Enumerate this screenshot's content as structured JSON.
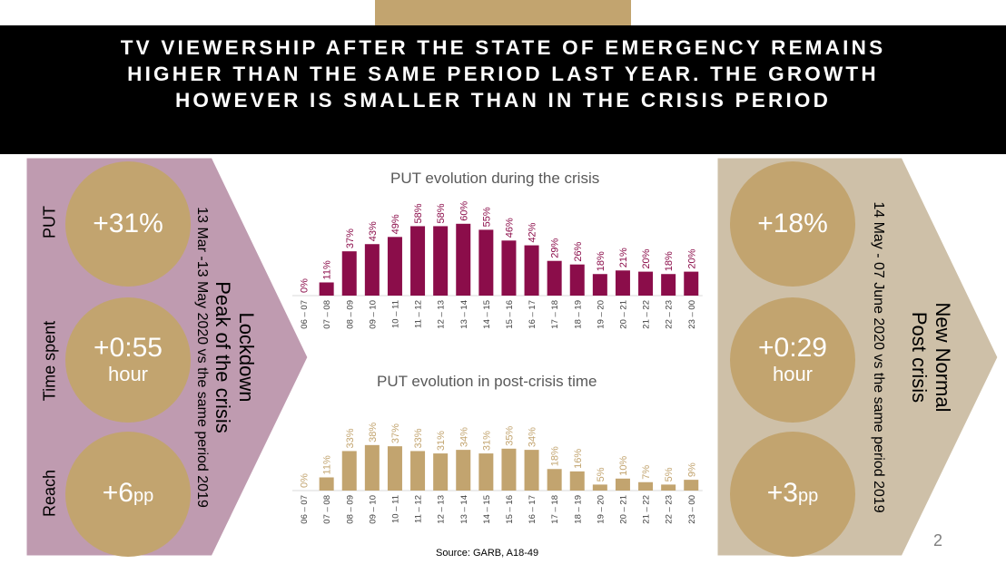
{
  "title": "TV viewership after the state of emergency remains higher than the same period last year. The growth however is smaller than in the crisis period",
  "left_panel": {
    "heading_line1": "Lockdown",
    "heading_line2": "Peak of the crisis",
    "period": "13 Mar -13 May 2020 vs the same period 2019",
    "metrics": [
      {
        "label": "PUT",
        "value": "+31%",
        "unit": ""
      },
      {
        "label": "Time spent",
        "value": "+0:55",
        "unit": "hour"
      },
      {
        "label": "Reach",
        "value": "+6",
        "unit": "pp"
      }
    ]
  },
  "right_panel": {
    "heading_line1": "New Normal",
    "heading_line2": "Post crisis",
    "period": "14 May - 07 June 2020 vs the same period 2019",
    "metrics": [
      {
        "value": "+18%",
        "unit": ""
      },
      {
        "value": "+0:29",
        "unit": "hour"
      },
      {
        "value": "+3",
        "unit": "pp"
      }
    ]
  },
  "chart_data": [
    {
      "type": "bar",
      "title": "PUT evolution during the crisis",
      "color": "#8b0d4a",
      "categories": [
        "06 – 07",
        "07 – 08",
        "08 – 09",
        "09 – 10",
        "10 – 11",
        "11 – 12",
        "12 – 13",
        "13 – 14",
        "14 – 15",
        "15 – 16",
        "16 – 17",
        "17 – 18",
        "18 – 19",
        "19 – 20",
        "20 – 21",
        "21 – 22",
        "22 – 23",
        "23 – 00"
      ],
      "values": [
        0,
        11,
        37,
        43,
        49,
        58,
        58,
        60,
        55,
        46,
        42,
        29,
        26,
        18,
        21,
        20,
        18,
        20
      ],
      "labels": [
        "0%",
        "11%",
        "37%",
        "43%",
        "49%",
        "58%",
        "58%",
        "60%",
        "55%",
        "46%",
        "42%",
        "29%",
        "26%",
        "18%",
        "21%",
        "20%",
        "18%",
        "20%"
      ]
    },
    {
      "type": "bar",
      "title": "PUT evolution in post-crisis time",
      "color": "#c2a46f",
      "categories": [
        "06 – 07",
        "07 – 08",
        "08 – 09",
        "09 – 10",
        "10 – 11",
        "11 – 12",
        "12 – 13",
        "13 – 14",
        "14 – 15",
        "15 – 16",
        "16 – 17",
        "17 – 18",
        "18 – 19",
        "19 – 20",
        "20 – 21",
        "21 – 22",
        "22 – 23",
        "23 – 00"
      ],
      "values": [
        0,
        11,
        33,
        38,
        37,
        33,
        31,
        34,
        31,
        35,
        34,
        18,
        16,
        5,
        10,
        7,
        5,
        9
      ],
      "labels": [
        "0%",
        "11%",
        "33%",
        "38%",
        "37%",
        "33%",
        "31%",
        "34%",
        "31%",
        "35%",
        "34%",
        "18%",
        "16%",
        "5%",
        "10%",
        "7%",
        "5%",
        "9%"
      ]
    }
  ],
  "source": "Source: GARB, A18-49",
  "page_number": "2"
}
